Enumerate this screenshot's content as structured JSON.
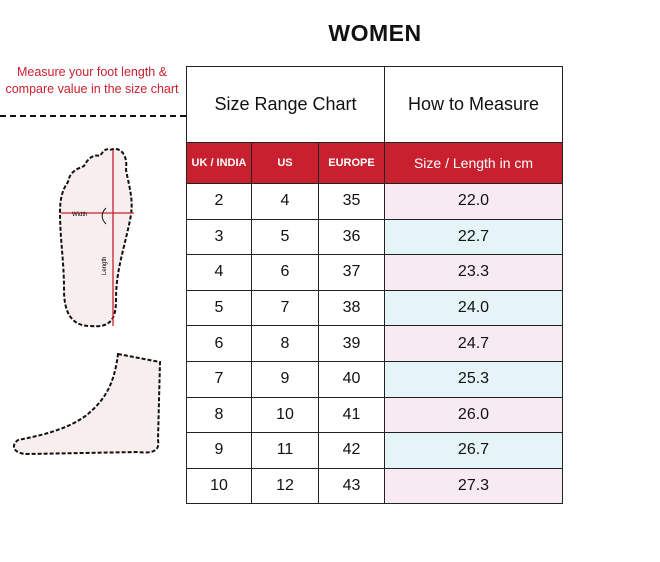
{
  "title": "WOMEN",
  "instruction": "Measure your foot length & compare value in the size chart",
  "foot_labels": {
    "width": "Width",
    "length": "Length"
  },
  "table": {
    "headers_top": [
      "Size Range Chart",
      "How to Measure"
    ],
    "columns": [
      "UK / INDIA",
      "US",
      "EUROPE",
      "Size / Length in cm"
    ],
    "rows": [
      [
        "2",
        "4",
        "35",
        "22.0"
      ],
      [
        "3",
        "5",
        "36",
        "22.7"
      ],
      [
        "4",
        "6",
        "37",
        "23.3"
      ],
      [
        "5",
        "7",
        "38",
        "24.0"
      ],
      [
        "6",
        "8",
        "39",
        "24.7"
      ],
      [
        "7",
        "9",
        "40",
        "25.3"
      ],
      [
        "8",
        "10",
        "41",
        "26.0"
      ],
      [
        "9",
        "11",
        "42",
        "26.7"
      ],
      [
        "10",
        "12",
        "43",
        "27.3"
      ]
    ]
  },
  "colors": {
    "header_red": "#c8202f",
    "row_pink": "#f8eaf3",
    "row_blue": "#e5f4f6"
  }
}
